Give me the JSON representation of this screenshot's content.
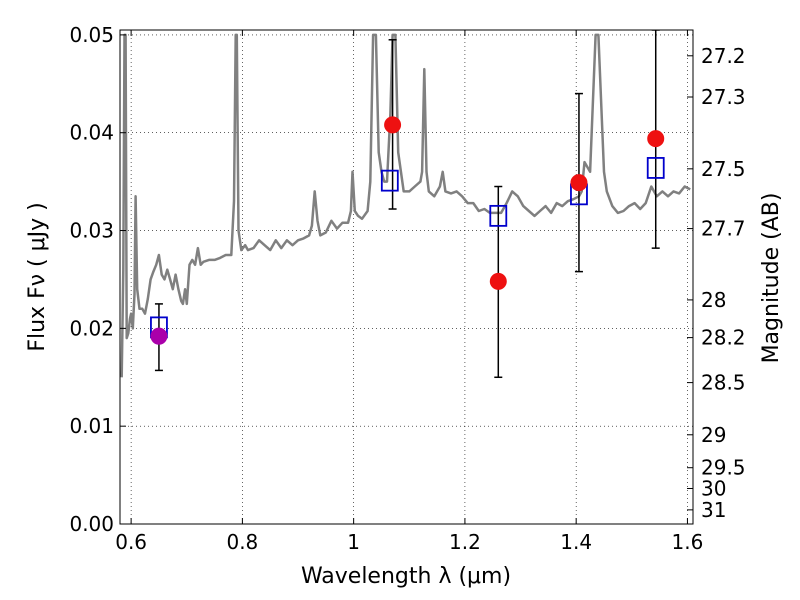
{
  "chart_data": {
    "type": "scatter",
    "xlabel": "Wavelength  λ (μm)",
    "ylabel": "Flux  Fν  ( μJy )",
    "ylabel_right": "Magnitude (AB)",
    "xlim": [
      0.58,
      1.61
    ],
    "ylim": [
      0.0,
      0.0505
    ],
    "grid": true,
    "xticks": [
      {
        "value": 0.6,
        "label": "0.6"
      },
      {
        "value": 0.8,
        "label": "0.8"
      },
      {
        "value": 1.0,
        "label": "1"
      },
      {
        "value": 1.2,
        "label": "1.2"
      },
      {
        "value": 1.4,
        "label": "1.4"
      },
      {
        "value": 1.6,
        "label": "1.6"
      }
    ],
    "yticks": [
      {
        "value": 0.0,
        "label": "0.00"
      },
      {
        "value": 0.01,
        "label": "0.01"
      },
      {
        "value": 0.02,
        "label": "0.02"
      },
      {
        "value": 0.03,
        "label": "0.03"
      },
      {
        "value": 0.04,
        "label": "0.04"
      },
      {
        "value": 0.05,
        "label": "0.05"
      }
    ],
    "right_ticks": [
      {
        "mag": 27.2,
        "label": "27.2"
      },
      {
        "mag": 27.3,
        "label": "27.3"
      },
      {
        "mag": 27.5,
        "label": "27.5"
      },
      {
        "mag": 27.7,
        "label": "27.7"
      },
      {
        "mag": 28.0,
        "label": "28"
      },
      {
        "mag": 28.2,
        "label": "28.2"
      },
      {
        "mag": 28.5,
        "label": "28.5"
      },
      {
        "mag": 29.0,
        "label": "29"
      },
      {
        "mag": 29.5,
        "label": "29.5"
      },
      {
        "mag": 30.0,
        "label": "30"
      },
      {
        "mag": 31.0,
        "label": "31"
      }
    ],
    "series": [
      {
        "kind": "spectrum",
        "color": "#808080",
        "points": [
          [
            0.583,
            0.015
          ],
          [
            0.586,
            0.026
          ],
          [
            0.588,
            0.05
          ],
          [
            0.59,
            0.05
          ],
          [
            0.592,
            0.019
          ],
          [
            0.595,
            0.0195
          ],
          [
            0.598,
            0.021
          ],
          [
            0.6,
            0.0215
          ],
          [
            0.603,
            0.02
          ],
          [
            0.606,
            0.0235
          ],
          [
            0.608,
            0.0335
          ],
          [
            0.611,
            0.024
          ],
          [
            0.615,
            0.022
          ],
          [
            0.62,
            0.022
          ],
          [
            0.625,
            0.0215
          ],
          [
            0.63,
            0.023
          ],
          [
            0.635,
            0.025
          ],
          [
            0.64,
            0.0258
          ],
          [
            0.645,
            0.0265
          ],
          [
            0.65,
            0.0275
          ],
          [
            0.655,
            0.0255
          ],
          [
            0.66,
            0.025
          ],
          [
            0.665,
            0.026
          ],
          [
            0.67,
            0.025
          ],
          [
            0.675,
            0.024
          ],
          [
            0.68,
            0.0255
          ],
          [
            0.685,
            0.024
          ],
          [
            0.69,
            0.0228
          ],
          [
            0.693,
            0.0225
          ],
          [
            0.697,
            0.024
          ],
          [
            0.7,
            0.0225
          ],
          [
            0.705,
            0.0265
          ],
          [
            0.71,
            0.027
          ],
          [
            0.715,
            0.0265
          ],
          [
            0.72,
            0.0282
          ],
          [
            0.725,
            0.0265
          ],
          [
            0.73,
            0.0268
          ],
          [
            0.74,
            0.027
          ],
          [
            0.75,
            0.027
          ],
          [
            0.76,
            0.0272
          ],
          [
            0.77,
            0.0275
          ],
          [
            0.78,
            0.0275
          ],
          [
            0.785,
            0.033
          ],
          [
            0.788,
            0.05
          ],
          [
            0.79,
            0.05
          ],
          [
            0.793,
            0.03
          ],
          [
            0.798,
            0.028
          ],
          [
            0.805,
            0.0285
          ],
          [
            0.81,
            0.028
          ],
          [
            0.82,
            0.0282
          ],
          [
            0.83,
            0.029
          ],
          [
            0.84,
            0.0285
          ],
          [
            0.85,
            0.028
          ],
          [
            0.86,
            0.029
          ],
          [
            0.87,
            0.0282
          ],
          [
            0.88,
            0.029
          ],
          [
            0.89,
            0.0285
          ],
          [
            0.9,
            0.029
          ],
          [
            0.91,
            0.0292
          ],
          [
            0.92,
            0.0295
          ],
          [
            0.925,
            0.0305
          ],
          [
            0.93,
            0.034
          ],
          [
            0.935,
            0.031
          ],
          [
            0.94,
            0.0295
          ],
          [
            0.95,
            0.0298
          ],
          [
            0.96,
            0.031
          ],
          [
            0.97,
            0.0302
          ],
          [
            0.98,
            0.0308
          ],
          [
            0.99,
            0.0308
          ],
          [
            0.995,
            0.032
          ],
          [
            0.998,
            0.036
          ],
          [
            1.002,
            0.032
          ],
          [
            1.008,
            0.0315
          ],
          [
            1.015,
            0.0312
          ],
          [
            1.025,
            0.032
          ],
          [
            1.03,
            0.035
          ],
          [
            1.035,
            0.05
          ],
          [
            1.04,
            0.05
          ],
          [
            1.045,
            0.038
          ],
          [
            1.05,
            0.036
          ],
          [
            1.055,
            0.035
          ],
          [
            1.06,
            0.035
          ],
          [
            1.066,
            0.042
          ],
          [
            1.07,
            0.05
          ],
          [
            1.075,
            0.05
          ],
          [
            1.08,
            0.038
          ],
          [
            1.09,
            0.034
          ],
          [
            1.1,
            0.034
          ],
          [
            1.11,
            0.0345
          ],
          [
            1.12,
            0.035
          ],
          [
            1.123,
            0.036
          ],
          [
            1.127,
            0.0465
          ],
          [
            1.131,
            0.036
          ],
          [
            1.135,
            0.034
          ],
          [
            1.145,
            0.0335
          ],
          [
            1.155,
            0.0345
          ],
          [
            1.16,
            0.036
          ],
          [
            1.165,
            0.034
          ],
          [
            1.175,
            0.0338
          ],
          [
            1.185,
            0.034
          ],
          [
            1.195,
            0.0335
          ],
          [
            1.205,
            0.0328
          ],
          [
            1.215,
            0.0328
          ],
          [
            1.225,
            0.032
          ],
          [
            1.235,
            0.0322
          ],
          [
            1.245,
            0.0318
          ],
          [
            1.255,
            0.0318
          ],
          [
            1.265,
            0.0318
          ],
          [
            1.275,
            0.0328
          ],
          [
            1.285,
            0.034
          ],
          [
            1.295,
            0.0335
          ],
          [
            1.305,
            0.0325
          ],
          [
            1.315,
            0.032
          ],
          [
            1.325,
            0.0315
          ],
          [
            1.335,
            0.032
          ],
          [
            1.345,
            0.0325
          ],
          [
            1.355,
            0.0318
          ],
          [
            1.365,
            0.0328
          ],
          [
            1.375,
            0.0325
          ],
          [
            1.385,
            0.033
          ],
          [
            1.395,
            0.0332
          ],
          [
            1.405,
            0.0335
          ],
          [
            1.41,
            0.034
          ],
          [
            1.415,
            0.037
          ],
          [
            1.425,
            0.036
          ],
          [
            1.435,
            0.05
          ],
          [
            1.44,
            0.05
          ],
          [
            1.45,
            0.036
          ],
          [
            1.455,
            0.034
          ],
          [
            1.465,
            0.0325
          ],
          [
            1.475,
            0.0318
          ],
          [
            1.485,
            0.032
          ],
          [
            1.495,
            0.0325
          ],
          [
            1.505,
            0.0328
          ],
          [
            1.515,
            0.0322
          ],
          [
            1.525,
            0.0328
          ],
          [
            1.535,
            0.0345
          ],
          [
            1.545,
            0.0335
          ],
          [
            1.555,
            0.034
          ],
          [
            1.565,
            0.0335
          ],
          [
            1.575,
            0.034
          ],
          [
            1.585,
            0.0338
          ],
          [
            1.595,
            0.0345
          ],
          [
            1.605,
            0.0342
          ]
        ]
      },
      {
        "kind": "model_fluxes",
        "marker": "open-square",
        "color": "#0000cc",
        "points": [
          [
            0.65,
            0.0201
          ],
          [
            1.065,
            0.0351
          ],
          [
            1.26,
            0.0315
          ],
          [
            1.405,
            0.0337
          ],
          [
            1.543,
            0.0364
          ]
        ]
      },
      {
        "kind": "observed_fluxes",
        "marker": "filled-circle",
        "points": [
          {
            "x": 0.65,
            "y": 0.0192,
            "err_low": 0.0157,
            "err_high": 0.0225,
            "color": "#aa00aa"
          },
          {
            "x": 1.07,
            "y": 0.0408,
            "err_low": 0.0322,
            "err_high": 0.0495,
            "color": "#ee1111"
          },
          {
            "x": 1.26,
            "y": 0.0248,
            "err_low": 0.015,
            "err_high": 0.0345,
            "color": "#ee1111"
          },
          {
            "x": 1.405,
            "y": 0.0349,
            "err_low": 0.0258,
            "err_high": 0.044,
            "color": "#ee1111"
          },
          {
            "x": 1.543,
            "y": 0.0394,
            "err_low": 0.0282,
            "err_high": 0.0505,
            "color": "#ee1111"
          }
        ]
      }
    ]
  }
}
